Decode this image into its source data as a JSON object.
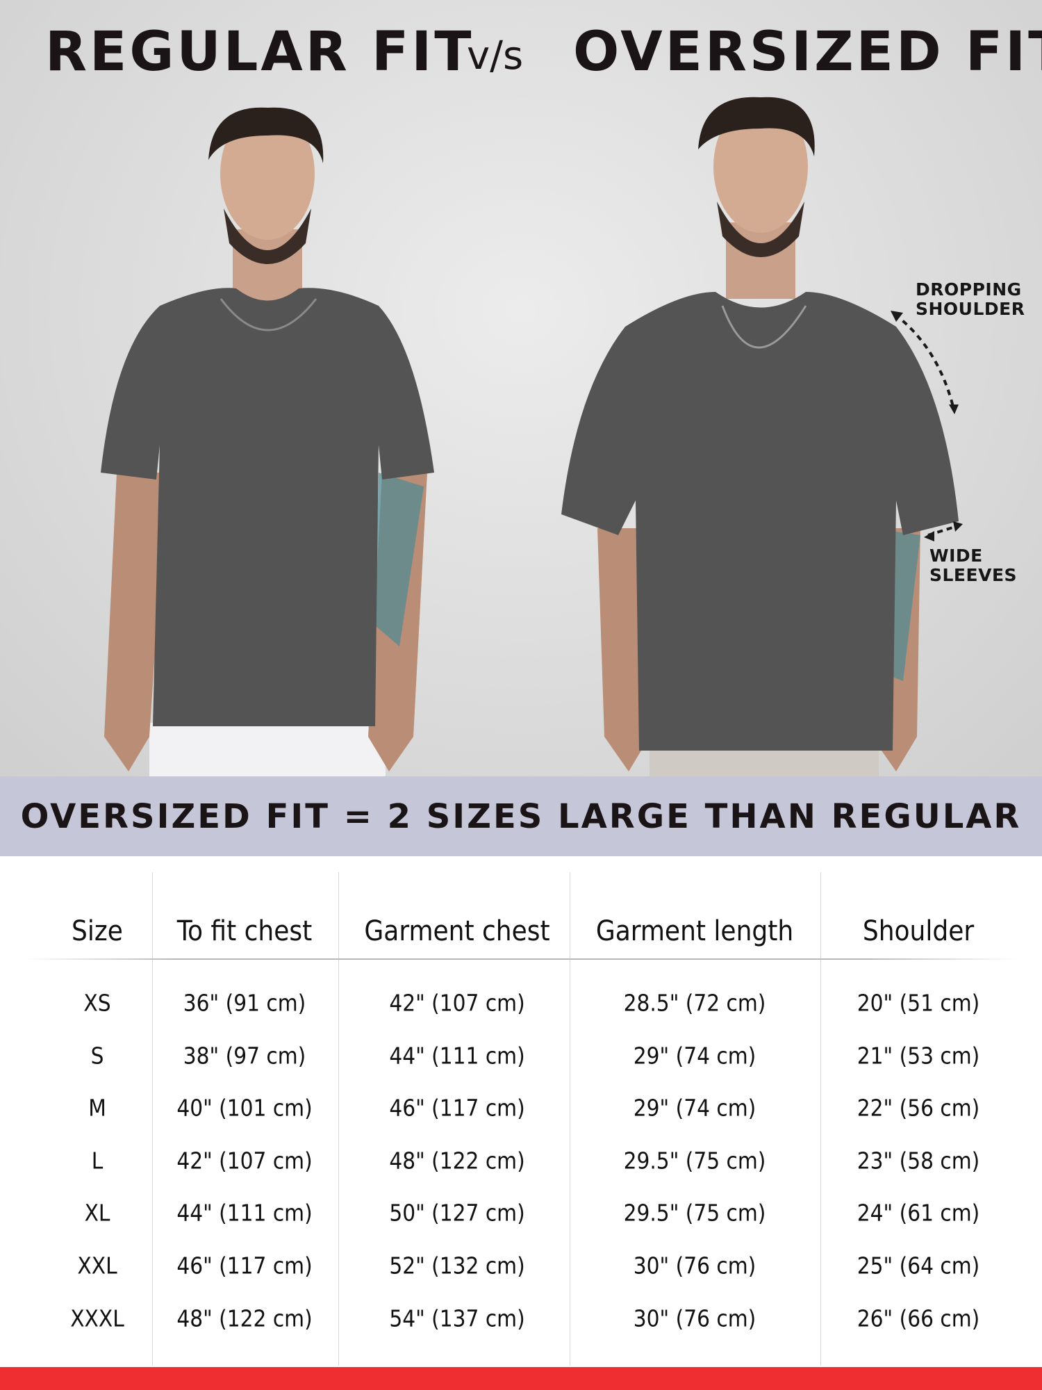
{
  "header": {
    "left": "REGULAR FIT",
    "vs": "v/s",
    "right": "OVERSIZED FIT"
  },
  "annotations": {
    "dropping_shoulder": [
      "DROPPING",
      "SHOULDER"
    ],
    "wide_sleeves": [
      "WIDE",
      "SLEEVES"
    ]
  },
  "banner": "OVERSIZED FIT = 2 SIZES LARGE THAN REGULAR",
  "table": {
    "columns": [
      "Size",
      "To fit chest",
      "Garment chest",
      "Garment length",
      "Shoulder"
    ],
    "rows": [
      [
        "XS",
        "36\" (91 cm)",
        "42\" (107 cm)",
        "28.5\" (72 cm)",
        "20\" (51 cm)"
      ],
      [
        "S",
        "38\" (97 cm)",
        "44\" (111 cm)",
        "29\" (74 cm)",
        "21\" (53 cm)"
      ],
      [
        "M",
        "40\" (101 cm)",
        "46\" (117 cm)",
        "29\" (74 cm)",
        "22\" (56 cm)"
      ],
      [
        "L",
        "42\" (107 cm)",
        "48\" (122 cm)",
        "29.5\" (75 cm)",
        "23\" (58 cm)"
      ],
      [
        "XL",
        "44\" (111 cm)",
        "50\" (127 cm)",
        "29.5\" (75 cm)",
        "24\" (61 cm)"
      ],
      [
        "XXL",
        "46\" (117 cm)",
        "52\" (132 cm)",
        "30\" (76 cm)",
        "25\" (64 cm)"
      ],
      [
        "XXXL",
        "48\" (122 cm)",
        "54\" (137 cm)",
        "30\" (76 cm)",
        "26\" (66 cm)"
      ]
    ]
  },
  "colors": {
    "banner": "#c5c6d8",
    "accent_bar": "#ee2e31",
    "shirt": "#545454",
    "text": "#1a1416"
  }
}
